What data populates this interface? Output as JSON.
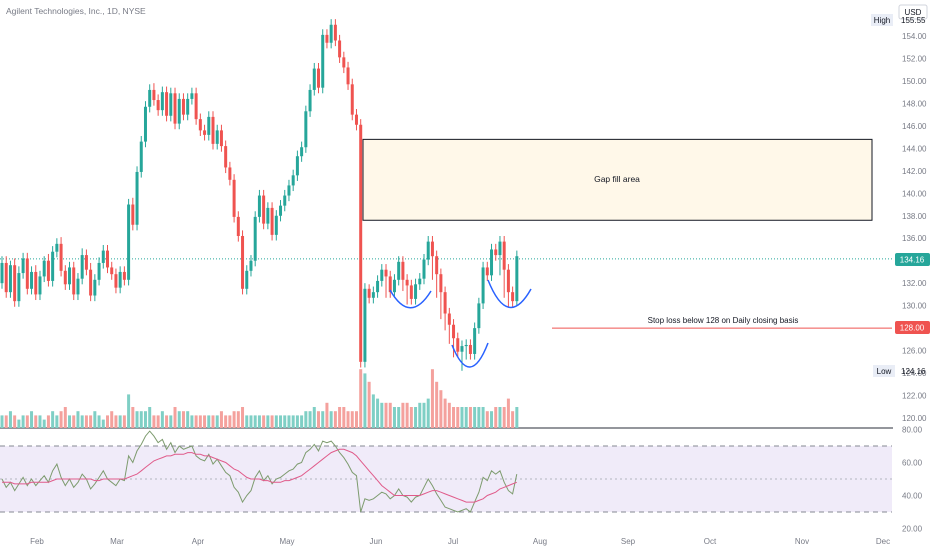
{
  "header": {
    "symbol_line": "Agilent Technologies, Inc., 1D, NYSE",
    "currency": "USD"
  },
  "colors": {
    "up": "#26a69a",
    "down": "#ef5350",
    "up_volume": "#7fcfc5",
    "down_volume": "#f4a19d",
    "rsi_line": "#7d9b6e",
    "rsi_ma": "#e05b8a",
    "rsi_band": "#f0ebf9",
    "gap_fill": "#fff8e9",
    "annotation_line": "#ef5350",
    "pattern_curve": "#2962ff",
    "last_price_bg": "#26a69a",
    "stop_bg": "#ef5350"
  },
  "annotations": {
    "gap_fill_label": "Gap fill area",
    "stop_loss_label": "Stop loss below 128 on Daily closing basis",
    "high_tag": "High",
    "high_value": "155.55",
    "low_tag": "Low",
    "low_value": "124.16",
    "last_price": "134.16",
    "stop_price": "128.00",
    "gap_top": 144.8,
    "gap_bottom": 137.6,
    "stop_level": 128,
    "last_level": 134.16
  },
  "chart_data": [
    {
      "type": "candlestick",
      "title": "Agilent Technologies, Inc., 1D, NYSE",
      "y_axis_ticks": [
        "154.00",
        "152.00",
        "150.00",
        "148.00",
        "146.00",
        "144.00",
        "142.00",
        "140.00",
        "138.00",
        "136.00",
        "134.00",
        "132.00",
        "130.00",
        "128.00",
        "126.00",
        "124.00",
        "122.00",
        "120.00"
      ],
      "ylim": [
        118.8,
        156.8
      ],
      "x_axis_ticks": [
        "Feb",
        "Mar",
        "Apr",
        "May",
        "Jun",
        "Jul",
        "Aug",
        "Sep",
        "Oct",
        "Nov",
        "Dec"
      ],
      "series": [
        {
          "name": "",
          "close": [
            133.8,
            131.2,
            133.6,
            130.4,
            132.9,
            134.2,
            131.5,
            133.0,
            131.0,
            132.6,
            134.0,
            132.2,
            134.8,
            135.5,
            133.1,
            131.9,
            133.4,
            131.0,
            132.4,
            134.5,
            133.2,
            130.9,
            132.3,
            133.8,
            134.9,
            133.4,
            132.8,
            131.6,
            133.0,
            132.3,
            139.0,
            137.2,
            141.9,
            144.6,
            147.7,
            149.2,
            148.3,
            147.4,
            149.0,
            146.9,
            148.9,
            146.2,
            148.4,
            147.0,
            148.4,
            148.9,
            146.6,
            145.6,
            145.2,
            146.8,
            144.4,
            145.6,
            144.2,
            142.3,
            141.2,
            137.9,
            136.2,
            131.5,
            133.1,
            134.0,
            137.9,
            139.8,
            137.3,
            138.7,
            136.3,
            138.0,
            138.9,
            139.8,
            140.7,
            141.6,
            143.3,
            144.1,
            147.3,
            149.2,
            151.1,
            149.4,
            154.1,
            153.4,
            155.0,
            153.6,
            152.1,
            151.2,
            149.7,
            147.0,
            146.1,
            125.0,
            131.5,
            130.7,
            131.2,
            132.2,
            133.2,
            132.6,
            131.2,
            132.3,
            133.9,
            132.3,
            131.8,
            130.6,
            131.9,
            132.4,
            134.1,
            135.7,
            134.4,
            132.8,
            131.2,
            129.3,
            128.3,
            127.1,
            125.9,
            126.4,
            126.5,
            125.7,
            128.0,
            130.2,
            133.4,
            132.7,
            135.0,
            134.5,
            135.7,
            133.2,
            131.2,
            130.4,
            134.4
          ],
          "open": [
            132.0,
            133.8,
            131.2,
            133.6,
            130.4,
            132.9,
            134.2,
            131.5,
            133.0,
            131.0,
            132.6,
            134.0,
            132.2,
            134.8,
            135.5,
            133.1,
            131.9,
            133.4,
            131.0,
            132.4,
            134.5,
            133.2,
            130.9,
            132.3,
            133.8,
            134.9,
            133.4,
            132.8,
            131.6,
            133.0,
            132.3,
            139.0,
            137.2,
            141.9,
            144.6,
            147.7,
            149.2,
            148.3,
            147.4,
            149.0,
            146.9,
            148.9,
            146.2,
            148.4,
            147.0,
            148.4,
            148.9,
            146.6,
            145.6,
            145.2,
            146.8,
            144.4,
            145.6,
            144.2,
            142.3,
            141.2,
            137.9,
            136.2,
            131.5,
            133.1,
            134.0,
            137.9,
            139.8,
            137.3,
            138.7,
            136.3,
            138.0,
            138.9,
            139.8,
            140.7,
            141.6,
            143.3,
            144.1,
            147.3,
            149.2,
            151.1,
            149.4,
            154.1,
            153.4,
            155.0,
            153.6,
            152.1,
            151.2,
            149.7,
            147.0,
            146.1,
            125.0,
            131.5,
            130.7,
            131.2,
            132.2,
            133.2,
            132.6,
            131.2,
            132.3,
            133.9,
            132.3,
            131.8,
            130.6,
            131.9,
            132.4,
            134.1,
            135.7,
            134.4,
            132.8,
            131.2,
            129.3,
            128.3,
            127.1,
            125.9,
            126.4,
            126.5,
            125.7,
            128.0,
            130.2,
            133.4,
            132.7,
            135.0,
            134.5,
            135.7,
            133.2,
            131.2,
            130.4
          ],
          "high": [
            134.4,
            134.4,
            134.0,
            134.2,
            133.5,
            134.7,
            134.7,
            133.5,
            133.6,
            133.1,
            134.4,
            134.6,
            135.3,
            136.0,
            136.1,
            133.6,
            133.9,
            133.9,
            132.9,
            135.1,
            135.0,
            133.8,
            132.8,
            134.3,
            135.4,
            135.4,
            133.9,
            133.3,
            133.5,
            133.5,
            139.5,
            139.6,
            142.4,
            145.1,
            148.2,
            149.7,
            149.8,
            148.8,
            149.5,
            149.5,
            149.4,
            149.4,
            148.9,
            148.9,
            148.9,
            149.4,
            149.4,
            147.1,
            146.1,
            147.3,
            147.3,
            146.1,
            146.1,
            144.7,
            142.8,
            141.7,
            138.4,
            136.7,
            133.6,
            134.5,
            138.4,
            140.3,
            140.3,
            139.2,
            139.2,
            138.5,
            139.4,
            140.3,
            141.2,
            142.1,
            143.8,
            144.6,
            147.8,
            149.7,
            151.6,
            151.6,
            154.6,
            154.6,
            155.5,
            155.5,
            154.1,
            152.6,
            151.7,
            150.2,
            147.5,
            146.6,
            132.0,
            131.9,
            131.7,
            132.7,
            133.7,
            133.7,
            133.1,
            132.8,
            134.4,
            134.4,
            132.8,
            132.3,
            132.4,
            132.9,
            134.6,
            136.2,
            136.2,
            134.9,
            133.3,
            131.7,
            129.8,
            128.8,
            127.6,
            126.9,
            127.0,
            127.0,
            128.5,
            130.7,
            133.9,
            133.9,
            135.5,
            135.5,
            136.2,
            136.2,
            133.7,
            131.7,
            134.9
          ],
          "low": [
            131.5,
            130.7,
            130.7,
            129.9,
            129.9,
            132.4,
            131.0,
            131.0,
            130.5,
            130.5,
            132.1,
            131.7,
            131.7,
            134.3,
            132.6,
            131.4,
            131.4,
            130.5,
            130.5,
            131.9,
            132.7,
            130.4,
            130.4,
            131.8,
            133.3,
            132.9,
            132.3,
            131.1,
            131.1,
            131.8,
            131.8,
            136.7,
            136.7,
            141.4,
            144.1,
            147.2,
            147.8,
            146.9,
            146.9,
            146.4,
            146.4,
            145.7,
            145.7,
            146.5,
            146.5,
            147.9,
            146.1,
            145.1,
            144.7,
            144.7,
            143.9,
            143.9,
            143.7,
            141.8,
            140.7,
            137.4,
            135.7,
            131.0,
            131.0,
            132.6,
            133.5,
            137.4,
            136.8,
            136.8,
            135.8,
            135.8,
            137.5,
            138.4,
            139.3,
            140.2,
            141.1,
            142.8,
            143.6,
            146.8,
            148.7,
            148.9,
            148.9,
            152.9,
            152.9,
            153.1,
            151.6,
            150.7,
            149.2,
            146.5,
            145.6,
            124.5,
            124.5,
            130.2,
            130.2,
            130.7,
            131.7,
            130.7,
            130.7,
            130.7,
            131.8,
            131.3,
            130.1,
            130.1,
            130.1,
            131.4,
            131.9,
            133.6,
            132.3,
            130.7,
            128.8,
            127.8,
            126.6,
            125.4,
            125.4,
            124.2,
            125.2,
            125.2,
            125.2,
            127.5,
            129.7,
            132.2,
            132.2,
            134.0,
            132.7,
            130.7,
            129.9,
            129.9,
            130.0
          ]
        },
        {
          "name": "",
          "type": "volume",
          "values": [
            3,
            3,
            4,
            3,
            2,
            3,
            3,
            4,
            3,
            3,
            2,
            3,
            4,
            3,
            4,
            5,
            3,
            3,
            4,
            3,
            3,
            3,
            4,
            3,
            2,
            3,
            4,
            3,
            3,
            3,
            8,
            5,
            4,
            4,
            4,
            5,
            3,
            3,
            4,
            3,
            3,
            5,
            4,
            4,
            4,
            3,
            3,
            3,
            3,
            3,
            3,
            3,
            4,
            3,
            3,
            4,
            4,
            5,
            3,
            3,
            3,
            3,
            3,
            3,
            3,
            3,
            3,
            3,
            3,
            3,
            3,
            3,
            4,
            4,
            5,
            4,
            4,
            6,
            4,
            4,
            5,
            5,
            4,
            4,
            4,
            14,
            13,
            11,
            8,
            7,
            6,
            6,
            6,
            5,
            5,
            6,
            6,
            5,
            5,
            6,
            6,
            7,
            14,
            11,
            9,
            7,
            6,
            5,
            5,
            5,
            5,
            5,
            5,
            5,
            5,
            4,
            4,
            5,
            5,
            5,
            7,
            4,
            5
          ]
        }
      ]
    },
    {
      "type": "line",
      "title": "",
      "y_axis_ticks": [
        "80.00",
        "60.00",
        "40.00",
        "20.00"
      ],
      "ylim": [
        20,
        80
      ],
      "bands": [
        70,
        50,
        30
      ],
      "series": [
        {
          "name": "",
          "values": [
            50,
            45,
            48,
            43,
            47,
            51,
            46,
            50,
            46,
            49,
            52,
            48,
            55,
            59,
            51,
            46,
            50,
            45,
            48,
            53,
            50,
            44,
            47,
            51,
            55,
            50,
            48,
            46,
            50,
            49,
            64,
            60,
            67,
            71,
            76,
            79,
            76,
            72,
            74,
            68,
            72,
            66,
            70,
            68,
            69,
            70,
            64,
            62,
            61,
            65,
            59,
            62,
            58,
            54,
            52,
            45,
            42,
            36,
            40,
            43,
            51,
            55,
            49,
            52,
            47,
            50,
            51,
            53,
            55,
            56,
            59,
            60,
            66,
            68,
            71,
            67,
            73,
            72,
            73,
            70,
            66,
            63,
            59,
            54,
            52,
            30,
            38,
            37,
            38,
            40,
            42,
            41,
            38,
            40,
            44,
            40,
            39,
            36,
            39,
            40,
            45,
            50,
            46,
            41,
            37,
            33,
            32,
            31,
            30,
            31,
            32,
            30,
            36,
            42,
            51,
            49,
            55,
            53,
            55,
            48,
            43,
            41,
            53
          ]
        },
        {
          "name": "",
          "values": [
            48,
            48,
            48,
            47,
            47,
            47,
            47,
            48,
            48,
            48,
            48,
            48,
            49,
            50,
            50,
            50,
            50,
            50,
            50,
            50,
            50,
            50,
            49,
            49,
            50,
            50,
            50,
            50,
            50,
            50,
            51,
            52,
            53,
            55,
            57,
            59,
            61,
            62,
            63,
            64,
            64,
            65,
            65,
            65,
            66,
            66,
            65,
            65,
            64,
            64,
            63,
            62,
            61,
            60,
            58,
            56,
            55,
            53,
            51,
            50,
            50,
            50,
            49,
            49,
            48,
            48,
            48,
            49,
            49,
            50,
            51,
            52,
            54,
            56,
            58,
            60,
            62,
            64,
            66,
            67,
            68,
            68,
            67,
            66,
            64,
            61,
            58,
            55,
            52,
            49,
            46,
            44,
            42,
            40,
            40,
            40,
            40,
            40,
            40,
            40,
            41,
            42,
            43,
            43,
            42,
            41,
            40,
            39,
            38,
            37,
            36,
            36,
            36,
            37,
            38,
            40,
            41,
            42,
            44,
            45,
            46,
            47,
            48
          ]
        }
      ]
    }
  ]
}
